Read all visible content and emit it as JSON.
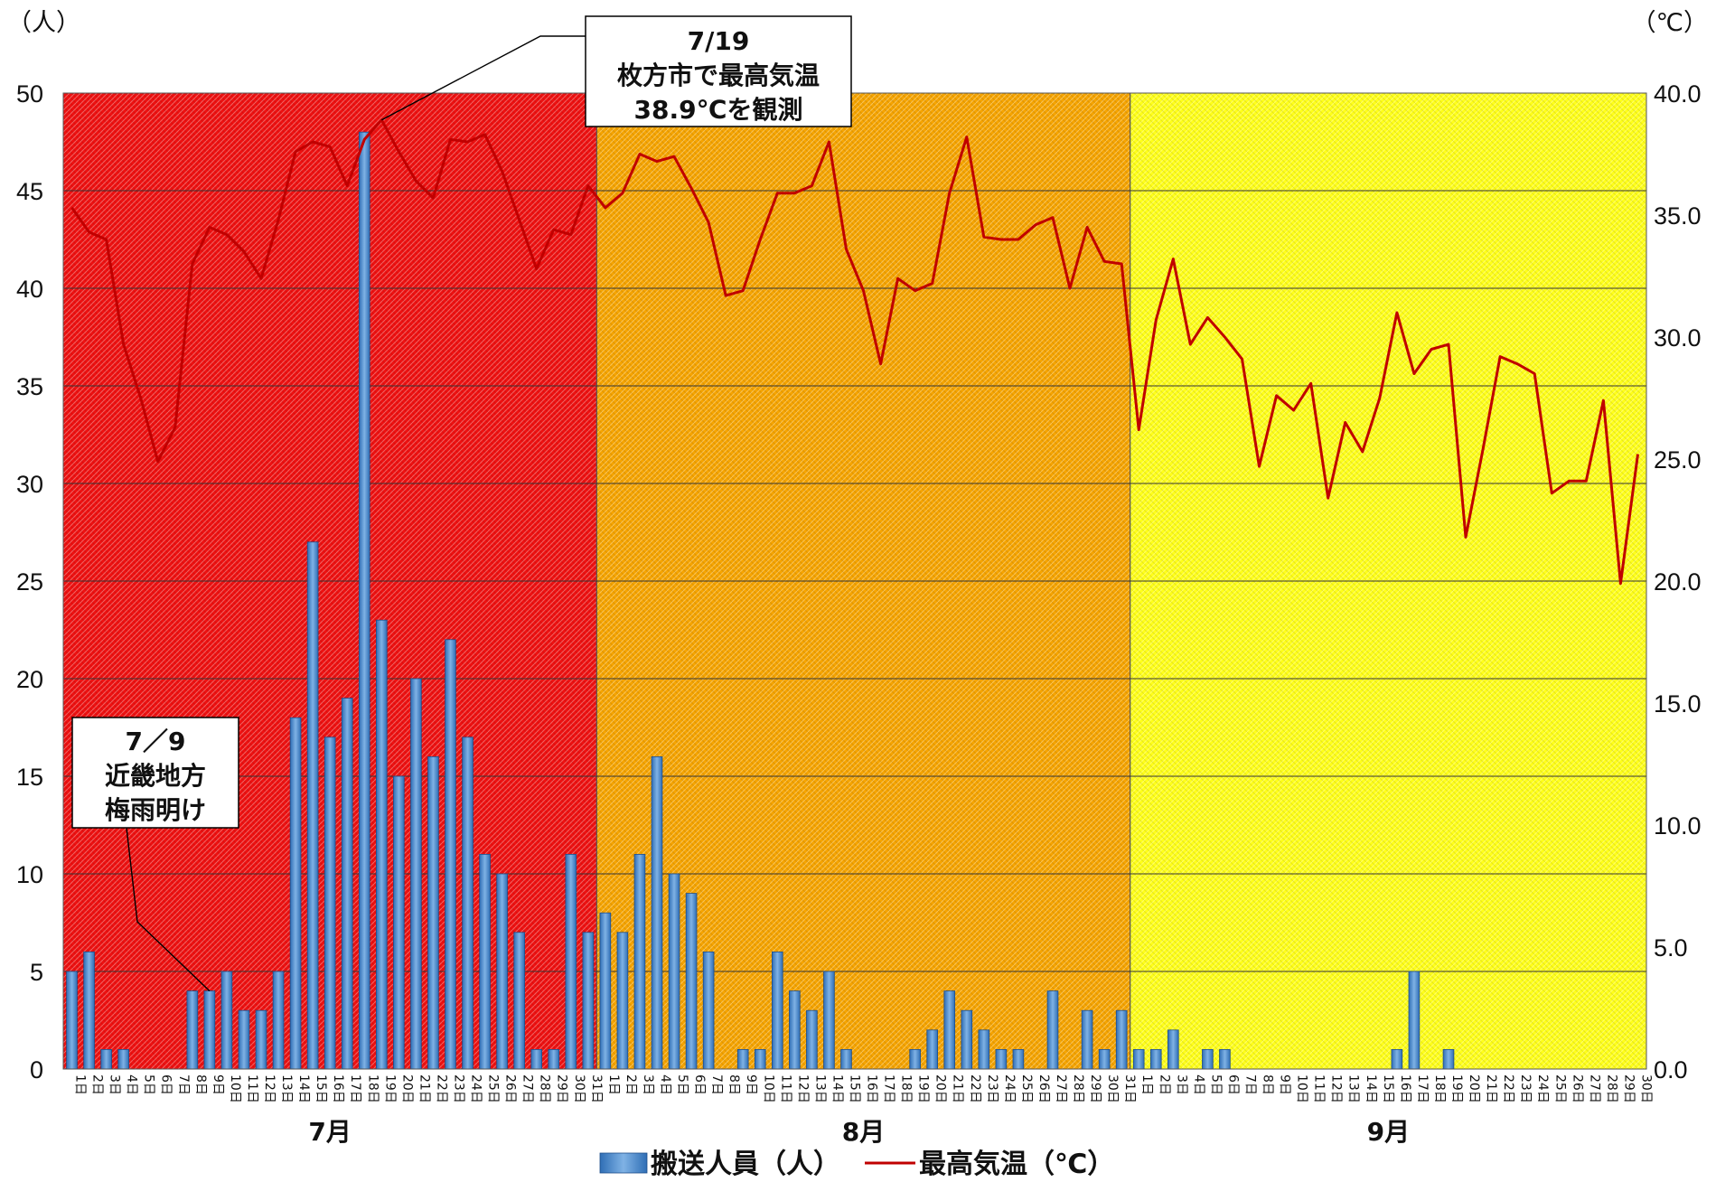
{
  "chart_data": {
    "type": "bar+line",
    "left_unit": "（人）",
    "right_unit": "（℃）",
    "y_left": {
      "min": 0,
      "max": 50,
      "step": 5,
      "ticks": [
        "0",
        "5",
        "10",
        "15",
        "20",
        "25",
        "30",
        "35",
        "40",
        "45",
        "50"
      ]
    },
    "y_right": {
      "min": 0,
      "max": 40,
      "step": 5,
      "ticks": [
        "0.0",
        "5.0",
        "10.0",
        "15.0",
        "20.0",
        "25.0",
        "30.0",
        "35.0",
        "40.0"
      ]
    },
    "months": [
      {
        "label": "7月",
        "days": 31,
        "bg": "#ee1111"
      },
      {
        "label": "8月",
        "days": 31,
        "bg": "#f6a400"
      },
      {
        "label": "9月",
        "days": 30,
        "bg": "#ffff1a"
      }
    ],
    "day_suffix": "日",
    "series": [
      {
        "name": "搬送人員（人）",
        "type": "bar",
        "color": "#4a86c8",
        "values": [
          5,
          6,
          1,
          1,
          0,
          0,
          0,
          4,
          4,
          5,
          3,
          3,
          5,
          18,
          27,
          17,
          19,
          48,
          23,
          15,
          20,
          16,
          22,
          17,
          11,
          10,
          7,
          1,
          1,
          11,
          7,
          8,
          7,
          11,
          16,
          10,
          9,
          6,
          0,
          1,
          1,
          6,
          4,
          3,
          5,
          1,
          0,
          0,
          0,
          1,
          2,
          4,
          3,
          2,
          1,
          1,
          0,
          4,
          0,
          3,
          1,
          3,
          1,
          1,
          2,
          0,
          1,
          1,
          0,
          0,
          0,
          0,
          0,
          0,
          0,
          0,
          0,
          1,
          5,
          0,
          1,
          0,
          0,
          0,
          0,
          0,
          0,
          0,
          0,
          0,
          0,
          0
        ]
      },
      {
        "name": "最高気温（℃）",
        "type": "line",
        "color": "#c00000",
        "values": [
          35.3,
          34.3,
          34.0,
          29.7,
          27.5,
          24.9,
          26.3,
          33.0,
          34.5,
          34.2,
          33.5,
          32.4,
          34.8,
          37.6,
          38.0,
          37.8,
          36.2,
          38.1,
          38.9,
          37.6,
          36.4,
          35.7,
          38.1,
          38.0,
          38.3,
          36.8,
          34.8,
          32.8,
          34.4,
          34.2,
          36.2,
          35.3,
          35.9,
          37.5,
          37.2,
          37.4,
          36.1,
          34.7,
          31.7,
          31.9,
          34.0,
          35.9,
          35.9,
          36.2,
          38.0,
          33.6,
          31.9,
          28.9,
          32.4,
          31.9,
          32.2,
          35.9,
          38.2,
          34.1,
          34.0,
          34.0,
          34.6,
          34.9,
          32.0,
          34.5,
          33.1,
          33.0,
          26.2,
          30.7,
          33.2,
          29.7,
          30.8,
          30.0,
          29.1,
          24.7,
          27.6,
          27.0,
          28.1,
          23.4,
          26.5,
          25.3,
          27.5,
          31.0,
          28.5,
          29.5,
          29.7,
          21.8,
          25.4,
          29.2,
          28.9,
          28.5,
          23.6,
          24.1,
          24.1,
          27.4,
          19.9,
          25.2
        ]
      }
    ],
    "annotations": [
      {
        "lines": [
          "7/19",
          "枚方市で最高気温",
          "38.9℃を観測"
        ]
      },
      {
        "lines": [
          "7／9",
          "近畿地方",
          "梅雨明け"
        ]
      }
    ]
  }
}
